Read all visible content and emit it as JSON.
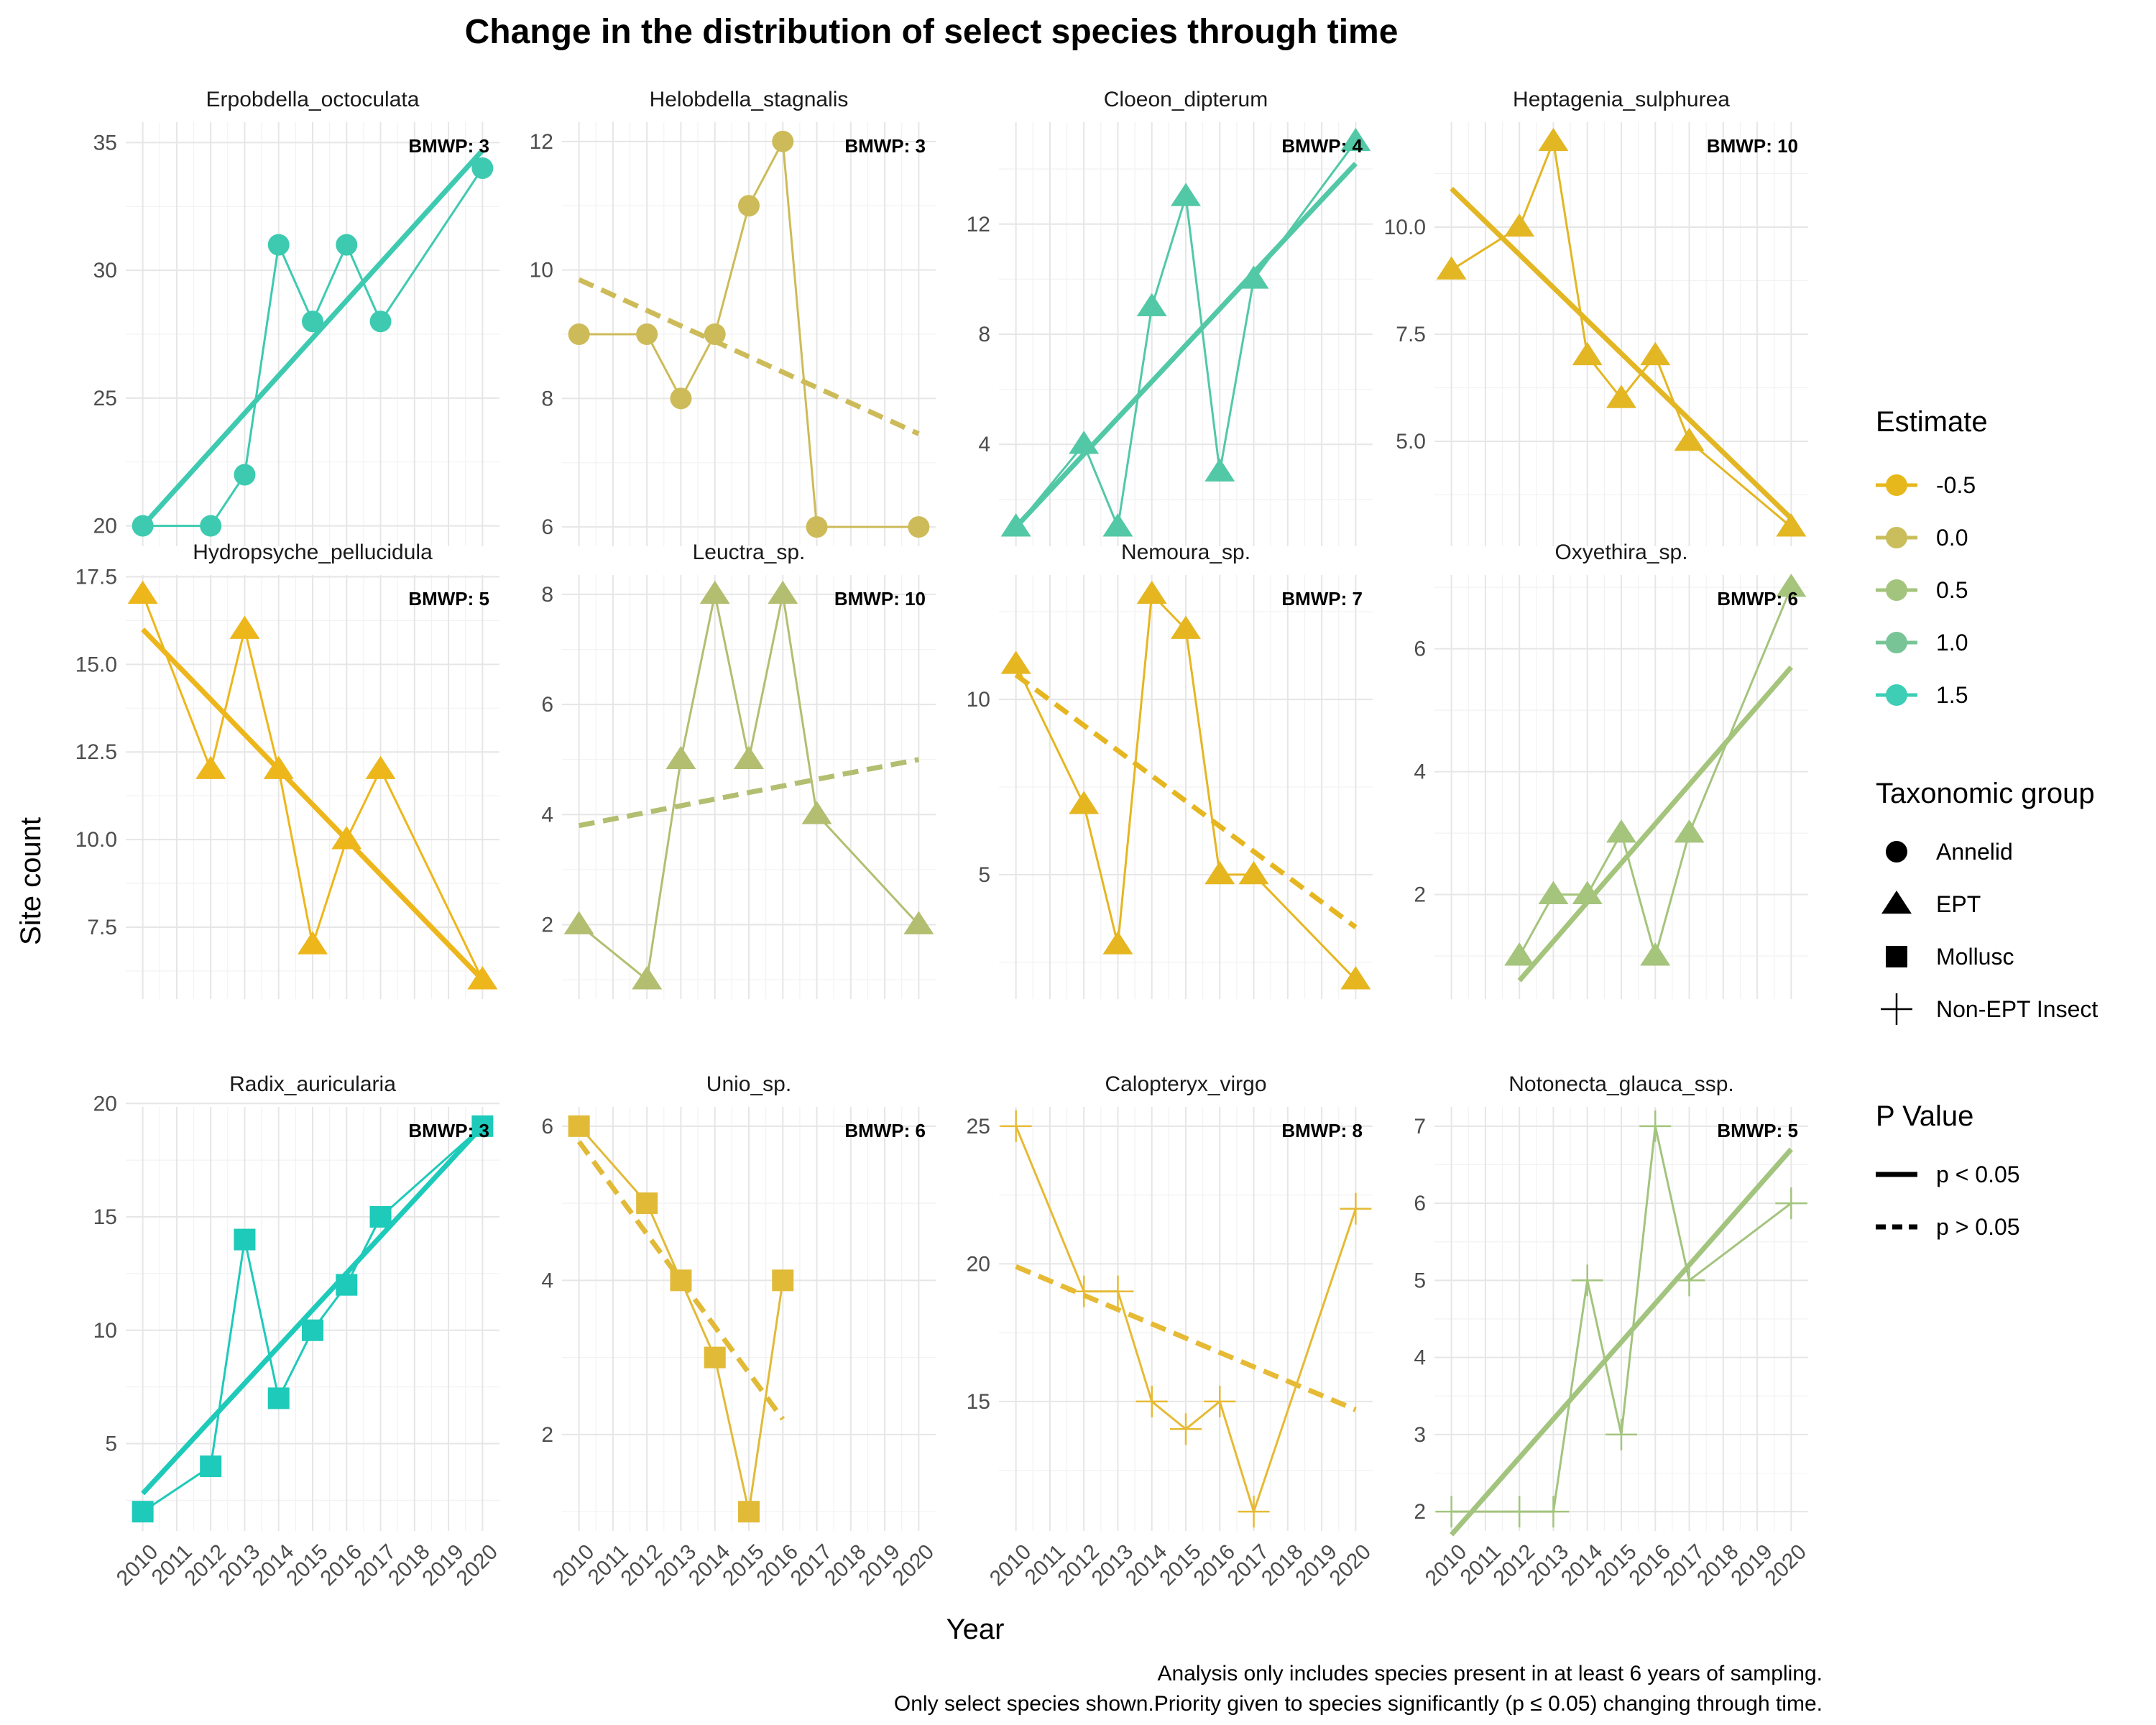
{
  "chart_data": {
    "type": "line",
    "title": "Change in the distribution of select species through time",
    "xlabel": "Year",
    "ylabel": "Site count",
    "x_ticks": [
      2010,
      2011,
      2012,
      2013,
      2014,
      2015,
      2016,
      2017,
      2018,
      2019,
      2020
    ],
    "grid": true,
    "facet_layout": "3 rows x 4 columns, free y scales",
    "caption": [
      "Analysis only includes species present in at least 6 years of sampling.",
      "Only select species shown.Priority given to species significantly (p ≤ 0.05) changing through time."
    ],
    "legends": {
      "estimate": {
        "title": "Estimate",
        "entries": [
          {
            "label": "-0.5",
            "color": "#E6B81C"
          },
          {
            "label": "0.0",
            "color": "#C9BE5B"
          },
          {
            "label": "0.5",
            "color": "#A3C47C"
          },
          {
            "label": "1.0",
            "color": "#78C497"
          },
          {
            "label": "1.5",
            "color": "#3ECDB5"
          }
        ]
      },
      "taxonomic_group": {
        "title": "Taxonomic group",
        "entries": [
          {
            "label": "Annelid",
            "shape": "circle"
          },
          {
            "label": "EPT",
            "shape": "triangle"
          },
          {
            "label": "Mollusc",
            "shape": "square"
          },
          {
            "label": "Non-EPT Insect",
            "shape": "cross"
          }
        ]
      },
      "p_value": {
        "title": "P Value",
        "entries": [
          {
            "label": "p < 0.05",
            "line": "solid"
          },
          {
            "label": "p > 0.05",
            "line": "dashed"
          }
        ]
      }
    },
    "facets": [
      {
        "species": "Erpobdella_octoculata",
        "bmwp": "BMWP: 3",
        "group": "Annelid",
        "color": "#3DCAB0",
        "significant": true,
        "ylim": [
          19.2,
          35.8
        ],
        "yticks": [
          20,
          25,
          30,
          35
        ],
        "ytick_labels": [
          "20",
          "25",
          "30",
          "35"
        ],
        "x": [
          2010,
          2012,
          2013,
          2014,
          2015,
          2016,
          2017,
          2020
        ],
        "y": [
          20,
          20,
          22,
          31,
          28,
          31,
          28,
          34
        ],
        "trend": {
          "x": [
            2010,
            2020
          ],
          "y": [
            20,
            34.7
          ]
        }
      },
      {
        "species": "Helobdella_stagnalis",
        "bmwp": "BMWP: 3",
        "group": "Annelid",
        "color": "#CDBB5A",
        "significant": false,
        "ylim": [
          5.7,
          12.3
        ],
        "yticks": [
          6,
          8,
          10,
          12
        ],
        "ytick_labels": [
          "6",
          "8",
          "10",
          "12"
        ],
        "x": [
          2010,
          2012,
          2013,
          2014,
          2015,
          2016,
          2017,
          2020
        ],
        "y": [
          9,
          9,
          8,
          9,
          11,
          12,
          6,
          6
        ],
        "trend": {
          "x": [
            2010,
            2020
          ],
          "y": [
            9.85,
            7.45
          ]
        }
      },
      {
        "species": "Cloeon_dipterum",
        "bmwp": "BMWP: 4",
        "group": "EPT",
        "color": "#52C8A6",
        "significant": true,
        "ylim": [
          0.3,
          15.7
        ],
        "yticks": [
          4,
          8,
          12
        ],
        "ytick_labels": [
          "4",
          "8",
          "12"
        ],
        "x": [
          2010,
          2012,
          2013,
          2014,
          2015,
          2016,
          2017,
          2020
        ],
        "y": [
          1,
          4,
          1,
          9,
          13,
          3,
          10,
          15
        ],
        "trend": {
          "x": [
            2010,
            2020
          ],
          "y": [
            1,
            14.2
          ]
        }
      },
      {
        "species": "Heptagenia_sulphurea",
        "bmwp": "BMWP: 10",
        "group": "EPT",
        "color": "#E3B624",
        "significant": true,
        "ylim": [
          2.55,
          12.45
        ],
        "yticks": [
          5,
          7.5,
          10
        ],
        "ytick_labels": [
          "5.0",
          "7.5",
          "10.0"
        ],
        "x": [
          2010,
          2012,
          2013,
          2014,
          2015,
          2016,
          2017,
          2020
        ],
        "y": [
          9,
          10,
          12,
          7,
          6,
          7,
          5,
          3
        ],
        "trend": {
          "x": [
            2010,
            2020
          ],
          "y": [
            10.9,
            3.2
          ]
        }
      },
      {
        "species": "Hydropsyche_pellucidula",
        "bmwp": "BMWP: 5",
        "group": "EPT",
        "color": "#EDB61B",
        "significant": true,
        "ylim": [
          5.45,
          17.55
        ],
        "yticks": [
          7.5,
          10,
          12.5,
          15,
          17.5
        ],
        "ytick_labels": [
          "7.5",
          "10.0",
          "12.5",
          "15.0",
          "17.5"
        ],
        "x": [
          2010,
          2012,
          2013,
          2014,
          2015,
          2016,
          2017,
          2020
        ],
        "y": [
          17,
          12,
          16,
          12,
          7,
          10,
          12,
          6
        ],
        "trend": {
          "x": [
            2010,
            2020
          ],
          "y": [
            16,
            6
          ]
        }
      },
      {
        "species": "Leuctra_sp.",
        "bmwp": "BMWP: 10",
        "group": "EPT",
        "color": "#B3BE70",
        "significant": false,
        "ylim": [
          0.65,
          8.35
        ],
        "yticks": [
          2,
          4,
          6,
          8
        ],
        "ytick_labels": [
          "2",
          "4",
          "6",
          "8"
        ],
        "x": [
          2010,
          2012,
          2013,
          2014,
          2015,
          2016,
          2017,
          2020
        ],
        "y": [
          2,
          1,
          5,
          8,
          5,
          8,
          4,
          2
        ],
        "trend": {
          "x": [
            2010,
            2020
          ],
          "y": [
            3.8,
            5
          ]
        }
      },
      {
        "species": "Nemoura_sp.",
        "bmwp": "BMWP: 7",
        "group": "EPT",
        "color": "#E6B621",
        "significant": false,
        "ylim": [
          1.45,
          13.55
        ],
        "yticks": [
          5,
          10
        ],
        "ytick_labels": [
          "5",
          "10"
        ],
        "x": [
          2010,
          2012,
          2013,
          2014,
          2015,
          2016,
          2017,
          2020
        ],
        "y": [
          11,
          7,
          3,
          13,
          12,
          5,
          5,
          2
        ],
        "trend": {
          "x": [
            2010,
            2020
          ],
          "y": [
            10.7,
            3.5
          ]
        }
      },
      {
        "species": "Oxyethira_sp.",
        "bmwp": "BMWP: 6",
        "group": "EPT",
        "color": "#A5C47C",
        "significant": true,
        "ylim": [
          0.3,
          7.2
        ],
        "yticks": [
          2,
          4,
          6
        ],
        "ytick_labels": [
          "2",
          "4",
          "6"
        ],
        "x": [
          2012,
          2013,
          2014,
          2015,
          2016,
          2017,
          2020
        ],
        "y": [
          1,
          2,
          2,
          3,
          1,
          3,
          7
        ],
        "trend": {
          "x": [
            2012,
            2020
          ],
          "y": [
            0.6,
            5.7
          ]
        }
      },
      {
        "species": "Radix_auricularia",
        "bmwp": "BMWP: 3",
        "group": "Mollusc",
        "color": "#1ECAB9",
        "significant": true,
        "ylim": [
          1.15,
          19.85
        ],
        "yticks": [
          5,
          10,
          15,
          20
        ],
        "ytick_labels": [
          "5",
          "10",
          "15",
          "20"
        ],
        "x": [
          2010,
          2012,
          2013,
          2014,
          2015,
          2016,
          2017,
          2020
        ],
        "y": [
          2,
          4,
          14,
          7,
          10,
          12,
          15,
          19
        ],
        "trend": {
          "x": [
            2010,
            2020
          ],
          "y": [
            2.8,
            19
          ]
        }
      },
      {
        "species": "Unio_sp.",
        "bmwp": "BMWP: 6",
        "group": "Mollusc",
        "color": "#E1BA38",
        "significant": false,
        "ylim": [
          0.75,
          6.25
        ],
        "yticks": [
          2,
          4,
          6
        ],
        "ytick_labels": [
          "2",
          "4",
          "6"
        ],
        "x": [
          2010,
          2012,
          2013,
          2014,
          2015,
          2016
        ],
        "y": [
          6,
          5,
          4,
          3,
          1,
          4
        ],
        "trend": {
          "x": [
            2010,
            2016
          ],
          "y": [
            5.8,
            2.2
          ]
        }
      },
      {
        "species": "Calopteryx_virgo",
        "bmwp": "BMWP: 8",
        "group": "Non-EPT Insect",
        "color": "#E6BA35",
        "significant": false,
        "ylim": [
          10.3,
          25.7
        ],
        "yticks": [
          15,
          20,
          25
        ],
        "ytick_labels": [
          "15",
          "20",
          "25"
        ],
        "x": [
          2010,
          2012,
          2013,
          2014,
          2015,
          2016,
          2017,
          2020
        ],
        "y": [
          25,
          19,
          19,
          15,
          14,
          15,
          11,
          22
        ],
        "trend": {
          "x": [
            2010,
            2020
          ],
          "y": [
            19.9,
            14.7
          ]
        }
      },
      {
        "species": "Notonecta_glauca_ssp.",
        "bmwp": "BMWP: 5",
        "group": "Non-EPT Insect",
        "color": "#A3C47E",
        "significant": true,
        "ylim": [
          1.75,
          7.25
        ],
        "yticks": [
          2,
          3,
          4,
          5,
          6,
          7
        ],
        "ytick_labels": [
          "2",
          "3",
          "4",
          "5",
          "6",
          "7"
        ],
        "x": [
          2010,
          2012,
          2013,
          2014,
          2015,
          2016,
          2017,
          2020
        ],
        "y": [
          2,
          2,
          2,
          5,
          3,
          7,
          5,
          6
        ],
        "trend": {
          "x": [
            2010,
            2020
          ],
          "y": [
            1.7,
            6.7
          ]
        }
      }
    ]
  }
}
